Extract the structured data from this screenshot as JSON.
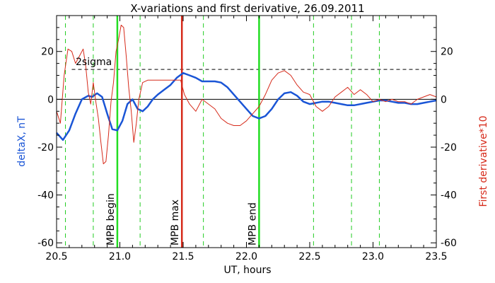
{
  "chart_data": {
    "type": "line",
    "title": "X-variations and first derivative, 26.09.2011",
    "xlabel": "UT, hours",
    "ylabel_left": "deltaX, nT",
    "ylabel_right": "First derivative*10",
    "xlim": [
      20.5,
      23.5
    ],
    "ylim": [
      -62,
      35
    ],
    "x_ticks": [
      20.5,
      21.0,
      21.5,
      22.0,
      22.5,
      23.0,
      23.5
    ],
    "x_tick_labels": [
      "20.5",
      "21.0",
      "21.5",
      "22.0",
      "22.5",
      "23.0",
      "23.5"
    ],
    "y_ticks": [
      20,
      0,
      -20,
      -40,
      -60
    ],
    "y_tick_labels_left": [
      "20",
      "0",
      "-20",
      "-40",
      "-60"
    ],
    "y_tick_labels_right": [
      "20",
      "0",
      "-20",
      "-40",
      "-60"
    ],
    "colors": {
      "deltaX": "#1a55d6",
      "derivative": "#d62a1a",
      "mpb_lines": "#22dd22",
      "mpb_max_line": "#d62a1a",
      "dashed_green": "#22cc22",
      "axis": "#000000"
    },
    "threshold": {
      "label": "2sigma",
      "value": 12.5
    },
    "zero_line": 0,
    "dashed_green_x": [
      20.57,
      20.79,
      21.16,
      21.66,
      22.53,
      22.83,
      23.05
    ],
    "markers": [
      {
        "x": 20.98,
        "label": "MPB begin",
        "color": "#22dd22"
      },
      {
        "x": 21.49,
        "label": "MPB max",
        "color": "#d62a1a"
      },
      {
        "x": 22.1,
        "label": "MPB end",
        "color": "#22dd22"
      }
    ],
    "series": [
      {
        "name": "deltaX, nT",
        "color": "#1a55d6",
        "x": [
          20.5,
          20.55,
          20.6,
          20.65,
          20.7,
          20.75,
          20.78,
          20.82,
          20.86,
          20.9,
          20.94,
          20.98,
          21.02,
          21.06,
          21.1,
          21.14,
          21.18,
          21.22,
          21.26,
          21.3,
          21.35,
          21.4,
          21.45,
          21.5,
          21.55,
          21.6,
          21.65,
          21.7,
          21.75,
          21.8,
          21.85,
          21.9,
          21.95,
          22.0,
          22.05,
          22.1,
          22.15,
          22.2,
          22.25,
          22.3,
          22.35,
          22.4,
          22.45,
          22.5,
          22.55,
          22.6,
          22.65,
          22.7,
          22.75,
          22.8,
          22.85,
          22.9,
          22.95,
          23.0,
          23.05,
          23.1,
          23.15,
          23.2,
          23.25,
          23.3,
          23.35,
          23.4,
          23.45,
          23.5
        ],
        "y": [
          -14,
          -17,
          -13,
          -6,
          0,
          1.5,
          1,
          2.5,
          1,
          -6,
          -12.5,
          -13,
          -9,
          -2,
          0,
          -4,
          -5,
          -3,
          0,
          2,
          4,
          6,
          9,
          11,
          10,
          9,
          7.5,
          7.5,
          7.5,
          7,
          5,
          2,
          -1,
          -4,
          -7,
          -8,
          -7,
          -4,
          0,
          2.5,
          3,
          1.5,
          -1,
          -2,
          -1.5,
          -1,
          -1,
          -1.5,
          -2,
          -2.5,
          -2.5,
          -2,
          -1.5,
          -1,
          -0.5,
          -0.5,
          -1,
          -1.5,
          -1.5,
          -2,
          -2,
          -1.5,
          -1,
          -0.5
        ]
      },
      {
        "name": "First derivative*10",
        "color": "#d62a1a",
        "x": [
          20.5,
          20.53,
          20.56,
          20.59,
          20.62,
          20.65,
          20.68,
          20.71,
          20.73,
          20.75,
          20.77,
          20.79,
          20.81,
          20.83,
          20.85,
          20.87,
          20.89,
          20.91,
          20.93,
          20.95,
          20.97,
          20.99,
          21.01,
          21.03,
          21.05,
          21.07,
          21.09,
          21.11,
          21.13,
          21.15,
          21.18,
          21.22,
          21.26,
          21.3,
          21.35,
          21.4,
          21.45,
          21.48,
          21.51,
          21.55,
          21.6,
          21.65,
          21.7,
          21.75,
          21.8,
          21.85,
          21.9,
          21.95,
          22.0,
          22.05,
          22.1,
          22.15,
          22.2,
          22.25,
          22.3,
          22.35,
          22.4,
          22.45,
          22.5,
          22.55,
          22.6,
          22.65,
          22.7,
          22.75,
          22.8,
          22.85,
          22.9,
          22.95,
          23.0,
          23.05,
          23.1,
          23.15,
          23.2,
          23.25,
          23.3,
          23.35,
          23.4,
          23.45,
          23.5
        ],
        "y": [
          -5,
          -10,
          10,
          21,
          20,
          15,
          18,
          21,
          14,
          3,
          -2,
          7,
          -1,
          -8,
          -18,
          -27,
          -26,
          -15,
          -1,
          7,
          20,
          25,
          31,
          30,
          18,
          5,
          -5,
          -18,
          -10,
          0,
          7,
          8,
          8,
          8,
          8,
          8,
          8,
          8,
          2,
          -2,
          -5,
          0,
          -2,
          -4,
          -8,
          -10,
          -11,
          -11,
          -9,
          -6,
          -3,
          2,
          8,
          11,
          12,
          10,
          6,
          3,
          2,
          -3,
          -5,
          -3,
          1,
          3,
          5,
          2,
          4,
          2,
          -1,
          0,
          -1,
          0,
          -1,
          -1,
          -2,
          0,
          1,
          2,
          1
        ]
      }
    ]
  }
}
